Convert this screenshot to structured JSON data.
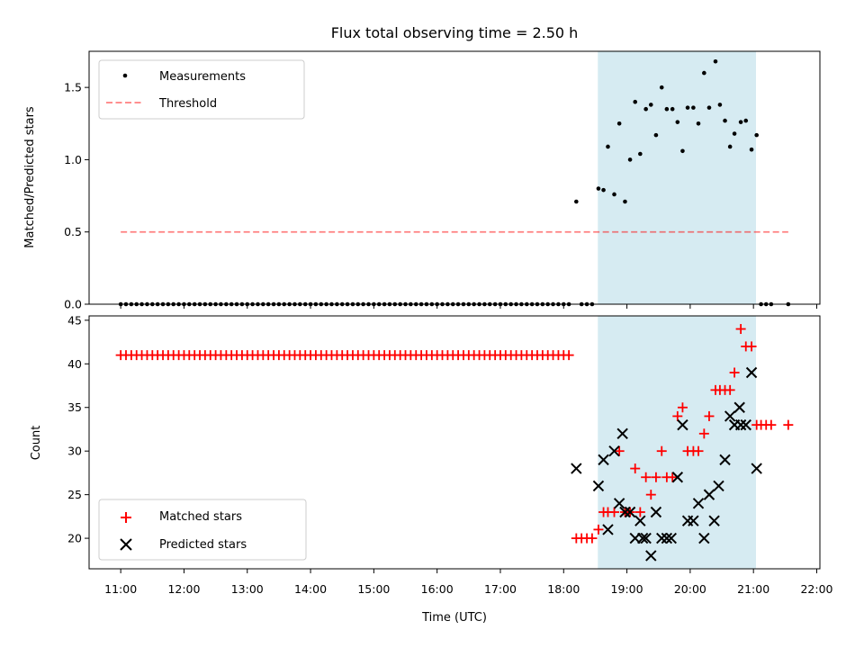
{
  "figure": {
    "title": "Flux total observing time = 2.50 h",
    "x_label": "Time (UTC)",
    "background": "#ffffff"
  },
  "colors": {
    "span": "#add8e6",
    "measurement": "#000000",
    "threshold": "#ff0000",
    "matched": "#ff0000",
    "predicted": "#000000"
  },
  "chart_data": [
    {
      "type": "scatter",
      "name": "ratio-panel",
      "title": "Flux total observing time = 2.50 h",
      "xlabel": "",
      "ylabel": "Matched/Predicted stars",
      "xlim": [
        10.5,
        22.05
      ],
      "ylim": [
        0.0,
        1.75
      ],
      "yticks": [
        0.0,
        0.5,
        1.0,
        1.5
      ],
      "ytick_labels": [
        "0.0",
        "0.5",
        "1.0",
        "1.5"
      ],
      "grid": false,
      "legend": "top-left",
      "highlight_span": [
        18.54,
        21.04
      ],
      "series": [
        {
          "name": "Measurements",
          "marker": "dot",
          "x": [
            11.0,
            11.083,
            11.167,
            11.25,
            11.333,
            11.417,
            11.5,
            11.583,
            11.667,
            11.75,
            11.833,
            11.917,
            12.0,
            12.083,
            12.167,
            12.25,
            12.333,
            12.417,
            12.5,
            12.583,
            12.667,
            12.75,
            12.833,
            12.917,
            13.0,
            13.083,
            13.167,
            13.25,
            13.333,
            13.417,
            13.5,
            13.583,
            13.667,
            13.75,
            13.833,
            13.917,
            14.0,
            14.083,
            14.167,
            14.25,
            14.333,
            14.417,
            14.5,
            14.583,
            14.667,
            14.75,
            14.833,
            14.917,
            15.0,
            15.083,
            15.167,
            15.25,
            15.333,
            15.417,
            15.5,
            15.583,
            15.667,
            15.75,
            15.833,
            15.917,
            16.0,
            16.083,
            16.167,
            16.25,
            16.333,
            16.417,
            16.5,
            16.583,
            16.667,
            16.75,
            16.833,
            16.917,
            17.0,
            17.083,
            17.167,
            17.25,
            17.333,
            17.417,
            17.5,
            17.583,
            17.667,
            17.75,
            17.833,
            17.917,
            18.0,
            18.083,
            18.2,
            18.283,
            18.367,
            18.45,
            18.55,
            18.63,
            18.7,
            18.8,
            18.88,
            18.97,
            19.05,
            19.13,
            19.21,
            19.3,
            19.38,
            19.46,
            19.55,
            19.63,
            19.72,
            19.8,
            19.88,
            19.96,
            20.05,
            20.13,
            20.22,
            20.3,
            20.4,
            20.47,
            20.55,
            20.63,
            20.7,
            20.8,
            20.88,
            20.97,
            21.05,
            21.12,
            21.2,
            21.28,
            21.55
          ],
          "y": [
            0,
            0,
            0,
            0,
            0,
            0,
            0,
            0,
            0,
            0,
            0,
            0,
            0,
            0,
            0,
            0,
            0,
            0,
            0,
            0,
            0,
            0,
            0,
            0,
            0,
            0,
            0,
            0,
            0,
            0,
            0,
            0,
            0,
            0,
            0,
            0,
            0,
            0,
            0,
            0,
            0,
            0,
            0,
            0,
            0,
            0,
            0,
            0,
            0,
            0,
            0,
            0,
            0,
            0,
            0,
            0,
            0,
            0,
            0,
            0,
            0,
            0,
            0,
            0,
            0,
            0,
            0,
            0,
            0,
            0,
            0,
            0,
            0,
            0,
            0,
            0,
            0,
            0,
            0,
            0,
            0,
            0,
            0,
            0,
            0,
            0,
            0.71,
            0,
            0,
            0,
            0.8,
            0.79,
            1.09,
            0.76,
            1.25,
            0.71,
            1.0,
            1.4,
            1.04,
            1.35,
            1.38,
            1.17,
            1.5,
            1.35,
            1.35,
            1.26,
            1.06,
            1.36,
            1.36,
            1.25,
            1.6,
            1.36,
            1.68,
            1.38,
            1.27,
            1.09,
            1.18,
            1.26,
            1.27,
            1.07,
            1.17,
            0,
            0,
            0,
            0
          ]
        },
        {
          "name": "Threshold",
          "marker": "dashed-line",
          "x": [
            11.0,
            21.55
          ],
          "y": [
            0.5,
            0.5
          ]
        }
      ]
    },
    {
      "type": "scatter",
      "name": "count-panel",
      "title": "",
      "xlabel": "Time (UTC)",
      "ylabel": "Count",
      "xlim": [
        10.5,
        22.05
      ],
      "ylim": [
        16.5,
        45.5
      ],
      "xticks": [
        11,
        12,
        13,
        14,
        15,
        16,
        17,
        18,
        19,
        20,
        21,
        22
      ],
      "xtick_labels": [
        "11:00",
        "12:00",
        "13:00",
        "14:00",
        "15:00",
        "16:00",
        "17:00",
        "18:00",
        "19:00",
        "20:00",
        "21:00",
        "22:00"
      ],
      "yticks": [
        20,
        25,
        30,
        35,
        40,
        45
      ],
      "ytick_labels": [
        "20",
        "25",
        "30",
        "35",
        "40",
        "45"
      ],
      "grid": false,
      "legend": "bottom-left",
      "highlight_span": [
        18.54,
        21.04
      ],
      "series": [
        {
          "name": "Matched stars",
          "marker": "plus",
          "x": [
            11.0,
            11.083,
            11.167,
            11.25,
            11.333,
            11.417,
            11.5,
            11.583,
            11.667,
            11.75,
            11.833,
            11.917,
            12.0,
            12.083,
            12.167,
            12.25,
            12.333,
            12.417,
            12.5,
            12.583,
            12.667,
            12.75,
            12.833,
            12.917,
            13.0,
            13.083,
            13.167,
            13.25,
            13.333,
            13.417,
            13.5,
            13.583,
            13.667,
            13.75,
            13.833,
            13.917,
            14.0,
            14.083,
            14.167,
            14.25,
            14.333,
            14.417,
            14.5,
            14.583,
            14.667,
            14.75,
            14.833,
            14.917,
            15.0,
            15.083,
            15.167,
            15.25,
            15.333,
            15.417,
            15.5,
            15.583,
            15.667,
            15.75,
            15.833,
            15.917,
            16.0,
            16.083,
            16.167,
            16.25,
            16.333,
            16.417,
            16.5,
            16.583,
            16.667,
            16.75,
            16.833,
            16.917,
            17.0,
            17.083,
            17.167,
            17.25,
            17.333,
            17.417,
            17.5,
            17.583,
            17.667,
            17.75,
            17.833,
            17.917,
            18.0,
            18.083,
            18.2,
            18.283,
            18.367,
            18.45,
            18.55,
            18.63,
            18.7,
            18.8,
            18.88,
            18.97,
            19.05,
            19.13,
            19.21,
            19.3,
            19.38,
            19.46,
            19.55,
            19.63,
            19.72,
            19.8,
            19.88,
            19.96,
            20.05,
            20.13,
            20.22,
            20.3,
            20.4,
            20.47,
            20.55,
            20.63,
            20.7,
            20.8,
            20.88,
            20.97,
            21.05,
            21.12,
            21.2,
            21.28,
            21.55
          ],
          "y": [
            41,
            41,
            41,
            41,
            41,
            41,
            41,
            41,
            41,
            41,
            41,
            41,
            41,
            41,
            41,
            41,
            41,
            41,
            41,
            41,
            41,
            41,
            41,
            41,
            41,
            41,
            41,
            41,
            41,
            41,
            41,
            41,
            41,
            41,
            41,
            41,
            41,
            41,
            41,
            41,
            41,
            41,
            41,
            41,
            41,
            41,
            41,
            41,
            41,
            41,
            41,
            41,
            41,
            41,
            41,
            41,
            41,
            41,
            41,
            41,
            41,
            41,
            41,
            41,
            41,
            41,
            41,
            41,
            41,
            41,
            41,
            41,
            41,
            41,
            41,
            41,
            41,
            41,
            41,
            41,
            41,
            41,
            41,
            41,
            41,
            41,
            20,
            20,
            20,
            20,
            21,
            23,
            23,
            23,
            30,
            23,
            23,
            28,
            23,
            27,
            25,
            27,
            30,
            27,
            27,
            34,
            35,
            30,
            30,
            30,
            32,
            34,
            37,
            37,
            37,
            37,
            39,
            44,
            42,
            42,
            33,
            33,
            33,
            33,
            33
          ]
        },
        {
          "name": "Predicted stars",
          "marker": "x",
          "x": [
            18.2,
            18.55,
            18.63,
            18.7,
            18.8,
            18.88,
            18.93,
            18.97,
            19.05,
            19.13,
            19.21,
            19.25,
            19.3,
            19.38,
            19.46,
            19.55,
            19.63,
            19.7,
            19.8,
            19.88,
            19.96,
            20.05,
            20.13,
            20.22,
            20.3,
            20.38,
            20.45,
            20.55,
            20.63,
            20.7,
            20.78,
            20.8,
            20.88,
            20.97,
            21.05
          ],
          "y": [
            28,
            26,
            29,
            21,
            30,
            24,
            32,
            23,
            23,
            20,
            22,
            20,
            20,
            18,
            23,
            20,
            20,
            20,
            27,
            33,
            22,
            22,
            24,
            20,
            25,
            22,
            26,
            29,
            34,
            33,
            35,
            33,
            33,
            39,
            28
          ]
        }
      ]
    }
  ]
}
